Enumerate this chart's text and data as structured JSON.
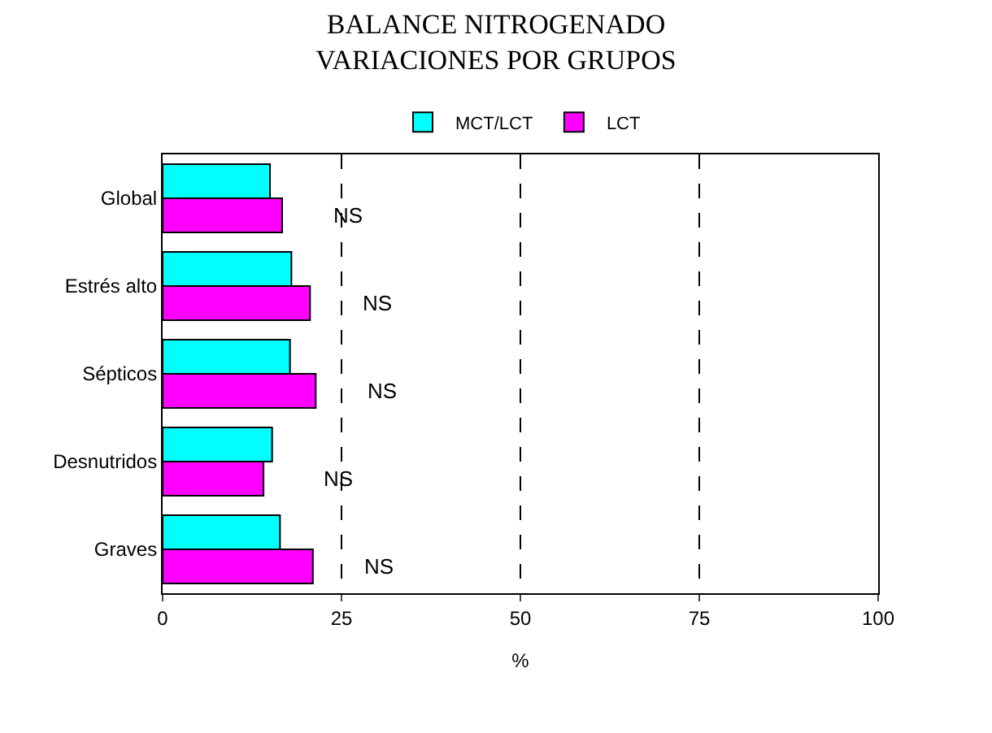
{
  "chart_data": {
    "type": "bar",
    "orientation": "horizontal",
    "title": "BALANCE NITROGENADO\nVARIACIONES POR GRUPOS",
    "xlabel": "%",
    "categories": [
      "Global",
      "Estrés alto",
      "Sépticos",
      "Desnutridos",
      "Graves"
    ],
    "series": [
      {
        "name": "MCT/LCT",
        "color": "#00ffff",
        "values": [
          15.0,
          18.0,
          17.8,
          15.3,
          16.4
        ]
      },
      {
        "name": "LCT",
        "color": "#ff00ff",
        "values": [
          16.7,
          20.6,
          21.4,
          14.1,
          21.0
        ]
      }
    ],
    "xlim": [
      0,
      100
    ],
    "xticks": [
      0,
      25,
      50,
      75,
      100
    ],
    "grid": "x",
    "legend": "top",
    "annotations": [
      "NS",
      "NS",
      "NS",
      "NS",
      "NS"
    ]
  }
}
